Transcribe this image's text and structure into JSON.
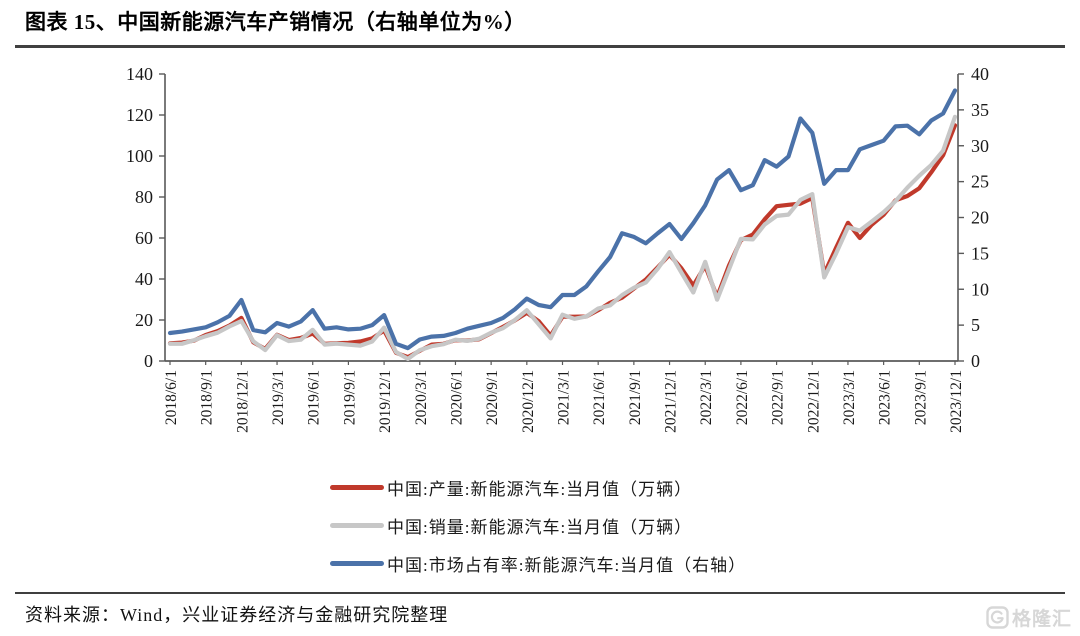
{
  "header": {
    "title": "图表 15、中国新能源汽车产销情况（右轴单位为%）"
  },
  "footer": {
    "source": "资料来源：Wind，兴业证券经济与金融研究院整理",
    "watermark": "格隆汇"
  },
  "chart_data": {
    "type": "line",
    "title": "中国新能源汽车产销情况",
    "grid": false,
    "legend_position": "bottom",
    "x": [
      "2018/6",
      "2018/7",
      "2018/8",
      "2018/9",
      "2018/10",
      "2018/11",
      "2018/12",
      "2019/1",
      "2019/2",
      "2019/3",
      "2019/4",
      "2019/5",
      "2019/6",
      "2019/7",
      "2019/8",
      "2019/9",
      "2019/10",
      "2019/11",
      "2019/12",
      "2020/1",
      "2020/2",
      "2020/3",
      "2020/4",
      "2020/5",
      "2020/6",
      "2020/7",
      "2020/8",
      "2020/9",
      "2020/10",
      "2020/11",
      "2020/12",
      "2021/1",
      "2021/2",
      "2021/3",
      "2021/4",
      "2021/5",
      "2021/6",
      "2021/7",
      "2021/8",
      "2021/9",
      "2021/10",
      "2021/11",
      "2021/12",
      "2022/1",
      "2022/2",
      "2022/3",
      "2022/4",
      "2022/5",
      "2022/6",
      "2022/7",
      "2022/8",
      "2022/9",
      "2022/10",
      "2022/11",
      "2022/12",
      "2023/1",
      "2023/2",
      "2023/3",
      "2023/4",
      "2023/5",
      "2023/6",
      "2023/7",
      "2023/8",
      "2023/9",
      "2023/10",
      "2023/11",
      "2023/12"
    ],
    "x_tick_labels": [
      "2018/6/1",
      "2018/9/1",
      "2018/12/1",
      "2019/3/1",
      "2019/6/1",
      "2019/9/1",
      "2019/12/1",
      "2020/3/1",
      "2020/6/1",
      "2020/9/1",
      "2020/12/1",
      "2021/3/1",
      "2021/6/1",
      "2021/9/1",
      "2021/12/1",
      "2022/3/1",
      "2022/6/1",
      "2022/9/1",
      "2022/12/1",
      "2023/3/1",
      "2023/6/1",
      "2023/9/1",
      "2023/12/1"
    ],
    "axes": {
      "left": {
        "min": 0,
        "max": 140,
        "step": 20,
        "ticks": [
          0,
          20,
          40,
          60,
          80,
          100,
          120,
          140
        ],
        "unit": "万辆"
      },
      "right": {
        "min": 0,
        "max": 40,
        "step": 5,
        "ticks": [
          0,
          5,
          10,
          15,
          20,
          25,
          30,
          35,
          40
        ],
        "unit": "%"
      }
    },
    "series": [
      {
        "id": "production",
        "label": "中国:产量:新能源汽车:当月值（万辆）",
        "color": "#c0392b",
        "axis": "left",
        "values": [
          8.6,
          9.0,
          9.9,
          12.7,
          14.6,
          17.3,
          21.0,
          9.1,
          5.9,
          12.8,
          10.2,
          11.2,
          13.4,
          8.4,
          8.7,
          8.9,
          9.5,
          11.0,
          14.9,
          4.0,
          1.9,
          5.0,
          8.0,
          8.4,
          10.2,
          10.0,
          10.6,
          13.6,
          16.7,
          19.8,
          23.5,
          19.4,
          12.4,
          21.6,
          21.6,
          21.7,
          24.8,
          28.4,
          30.9,
          35.3,
          39.7,
          45.7,
          51.8,
          45.2,
          36.8,
          46.5,
          31.2,
          46.6,
          59.0,
          61.7,
          69.1,
          75.5,
          76.2,
          76.8,
          79.5,
          42.5,
          55.2,
          67.4,
          60.0,
          66.5,
          71.3,
          78.4,
          80.5,
          84.3,
          92.0,
          100.4,
          115.0
        ]
      },
      {
        "id": "sales",
        "label": "中国:销量:新能源汽车:当月值（万辆）",
        "color": "#c7c7c7",
        "axis": "left",
        "values": [
          8.4,
          8.4,
          10.1,
          12.1,
          13.8,
          16.9,
          19.5,
          9.6,
          5.3,
          12.6,
          9.7,
          10.4,
          15.2,
          8.0,
          8.5,
          8.0,
          7.5,
          9.5,
          16.3,
          4.4,
          1.0,
          5.3,
          7.2,
          8.2,
          10.4,
          9.8,
          10.9,
          13.8,
          16.0,
          20.0,
          24.8,
          17.9,
          11.0,
          22.6,
          20.6,
          21.7,
          25.6,
          27.1,
          32.1,
          35.7,
          38.3,
          45.0,
          53.1,
          43.1,
          33.4,
          48.4,
          29.9,
          44.7,
          59.6,
          59.3,
          66.6,
          70.8,
          71.4,
          78.6,
          81.4,
          40.8,
          52.5,
          65.3,
          63.6,
          68.0,
          72.6,
          78.0,
          84.6,
          90.4,
          95.6,
          102.6,
          119.1
        ]
      },
      {
        "id": "market_share",
        "label": "中国:市场占有率:新能源汽车:当月值（右轴）",
        "color": "#4b72a9",
        "axis": "right",
        "values": [
          3.9,
          4.1,
          4.4,
          4.7,
          5.4,
          6.3,
          8.5,
          4.3,
          4.0,
          5.3,
          4.8,
          5.5,
          7.1,
          4.5,
          4.7,
          4.4,
          4.5,
          5.0,
          6.4,
          2.4,
          1.8,
          3.0,
          3.4,
          3.5,
          3.9,
          4.5,
          4.9,
          5.3,
          6.0,
          7.2,
          8.7,
          7.8,
          7.5,
          9.2,
          9.2,
          10.4,
          12.5,
          14.5,
          17.8,
          17.3,
          16.4,
          17.8,
          19.1,
          17.0,
          19.2,
          21.7,
          25.3,
          26.6,
          23.8,
          24.5,
          28.0,
          27.1,
          28.5,
          33.8,
          31.8,
          24.7,
          26.6,
          26.6,
          29.5,
          30.1,
          30.7,
          32.7,
          32.8,
          31.6,
          33.5,
          34.5,
          37.7
        ]
      }
    ],
    "colors": {
      "axis": "#595959",
      "tick_text": "#1a1a1a",
      "rule": "#404040",
      "watermark": "#d7d7d7"
    }
  }
}
